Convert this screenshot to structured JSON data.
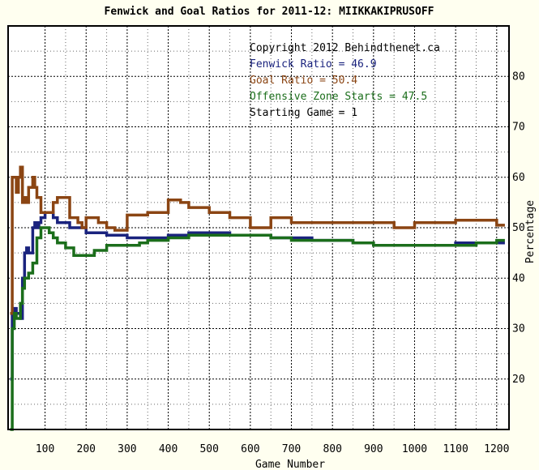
{
  "chart_data": {
    "type": "line",
    "title": "Fenwick and Goal Ratios for 2011-12: MIIKKAKIPRUSOFF",
    "xlabel": "Game Number",
    "ylabel": "Percentage",
    "xlim": [
      10,
      1230
    ],
    "ylim": [
      10,
      90
    ],
    "x_ticks": [
      100,
      200,
      300,
      400,
      500,
      600,
      700,
      800,
      900,
      1000,
      1100,
      1200
    ],
    "y_ticks": [
      20,
      30,
      40,
      50,
      60,
      70,
      80
    ],
    "grid": true,
    "legend_position": "top-right",
    "annotations": [
      {
        "text": "Copyright 2012 Behindthenet.ca",
        "color": "#000000"
      },
      {
        "text": "Fenwick Ratio = 46.9",
        "color": "#1a237e"
      },
      {
        "text": "Goal Ratio = 50.4",
        "color": "#8b4513"
      },
      {
        "text": "Offensive Zone Starts = 47.5",
        "color": "#1b6e1b"
      },
      {
        "text": "Starting Game = 1",
        "color": "#000000"
      }
    ],
    "series": [
      {
        "name": "Fenwick Ratio",
        "color": "#1a237e",
        "x": [
          15,
          20,
          25,
          30,
          40,
          45,
          50,
          55,
          60,
          70,
          75,
          80,
          85,
          90,
          100,
          110,
          120,
          130,
          150,
          160,
          180,
          200,
          220,
          250,
          280,
          300,
          330,
          350,
          400,
          450,
          500,
          550,
          600,
          650,
          700,
          750,
          800,
          850,
          900,
          950,
          1000,
          1050,
          1100,
          1150,
          1200,
          1220
        ],
        "y": [
          20,
          33,
          34,
          33,
          32,
          40,
          45,
          46,
          45,
          50,
          51,
          50,
          51,
          52,
          53,
          53,
          52,
          51,
          51,
          50,
          50,
          49,
          49,
          48.5,
          48.5,
          48,
          48,
          48,
          48.5,
          49,
          49,
          48.5,
          48.5,
          48,
          48,
          47.5,
          47.5,
          47,
          46.5,
          46.5,
          46.5,
          46.5,
          47,
          47,
          47,
          47
        ]
      },
      {
        "name": "Goal Ratio",
        "color": "#8b4513",
        "x": [
          15,
          20,
          25,
          30,
          35,
          40,
          45,
          50,
          55,
          60,
          70,
          75,
          80,
          90,
          100,
          120,
          130,
          150,
          160,
          180,
          190,
          200,
          210,
          230,
          250,
          270,
          300,
          330,
          350,
          380,
          400,
          430,
          450,
          500,
          550,
          600,
          620,
          650,
          700,
          750,
          800,
          850,
          900,
          950,
          1000,
          1050,
          1100,
          1150,
          1200,
          1220
        ],
        "y": [
          33,
          60,
          60,
          57,
          60,
          62,
          55,
          56,
          55,
          58,
          60,
          58,
          56,
          53,
          53,
          55,
          56,
          56,
          52,
          51,
          50,
          52,
          52,
          51,
          50,
          49.5,
          52.5,
          52.5,
          53,
          53,
          55.5,
          55,
          54,
          53,
          52,
          50,
          50,
          52,
          51,
          51,
          51,
          51,
          51,
          50,
          51,
          51,
          51.5,
          51.5,
          50.5,
          50.5
        ]
      },
      {
        "name": "Offensive Zone Starts",
        "color": "#1b6e1b",
        "x": [
          15,
          20,
          25,
          30,
          40,
          45,
          50,
          60,
          70,
          80,
          90,
          100,
          110,
          120,
          130,
          150,
          170,
          200,
          220,
          250,
          280,
          300,
          330,
          350,
          400,
          450,
          500,
          550,
          600,
          650,
          700,
          750,
          800,
          850,
          900,
          950,
          1000,
          1050,
          1100,
          1150,
          1200,
          1220
        ],
        "y": [
          10,
          30,
          33,
          32,
          35,
          38,
          40,
          41,
          43,
          48,
          50,
          50,
          49,
          48,
          47,
          46,
          44.5,
          44.5,
          45.5,
          46.5,
          46.5,
          46.5,
          47,
          47.5,
          48,
          48.5,
          48.5,
          48.5,
          48.5,
          48,
          47.5,
          47.5,
          47.5,
          47,
          46.5,
          46.5,
          46.5,
          46.5,
          46.5,
          47,
          47.5,
          47.5
        ]
      }
    ]
  }
}
